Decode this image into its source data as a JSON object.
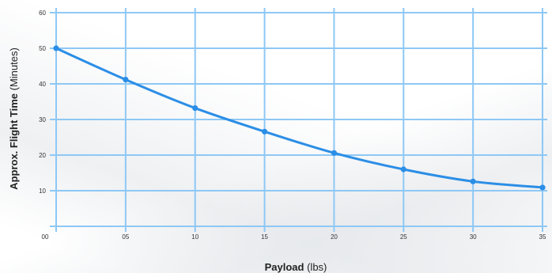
{
  "chart_data": {
    "type": "line",
    "x": [
      0,
      5,
      10,
      15,
      20,
      25,
      30,
      35
    ],
    "x_tick_labels": [
      "00",
      "05",
      "10",
      "15",
      "20",
      "25",
      "30",
      "35"
    ],
    "series": [
      {
        "values": [
          50,
          41.2,
          33.2,
          26.6,
          20.6,
          16.0,
          12.6,
          10.9
        ]
      }
    ],
    "xlabel_bold": "Payload",
    "xlabel_rest": " (lbs)",
    "ylabel_bold": "Approx. Flight Time",
    "ylabel_rest": " (Minutes)",
    "y_ticks": [
      10,
      20,
      30,
      40,
      50,
      60
    ],
    "y_tick_labels": [
      "10",
      "20",
      "30",
      "40",
      "50",
      "60"
    ],
    "xlim": [
      0,
      35
    ],
    "ylim": [
      0,
      60
    ],
    "grid": true,
    "colors": {
      "line": "#2b8ee6",
      "grid": "#8ec8f5",
      "marker": "#2b8ee6"
    }
  }
}
